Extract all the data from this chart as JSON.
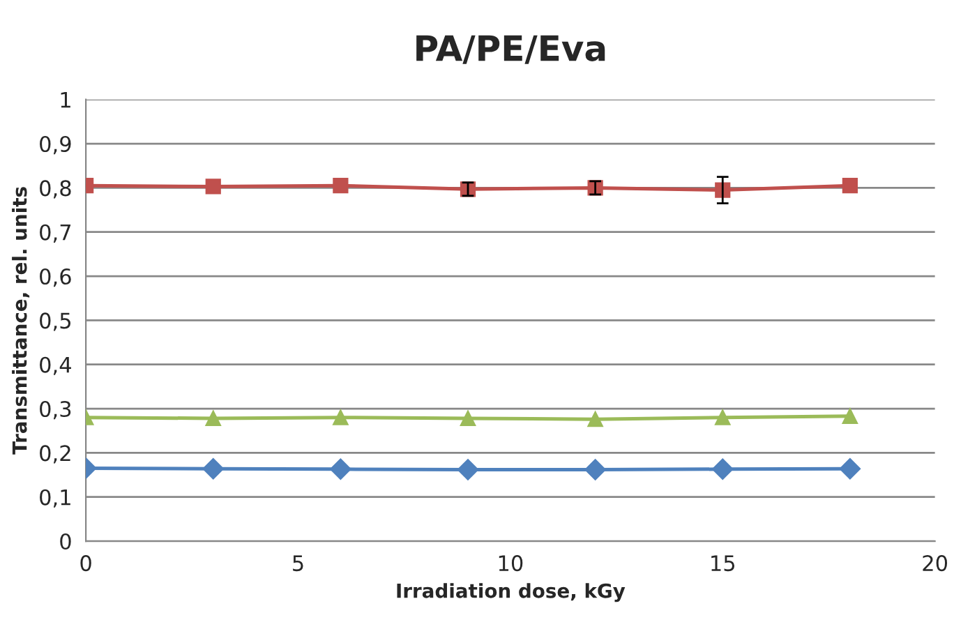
{
  "chart_data": {
    "type": "line",
    "title": "PA/PE/Eva",
    "xlabel": "Irradiation dose, kGy",
    "ylabel": "Transmittance, rel. units",
    "x": [
      0,
      3,
      6,
      9,
      12,
      15,
      18
    ],
    "series": [
      {
        "color": "#c0504d",
        "marker": "square",
        "values": [
          0.805,
          0.803,
          0.805,
          0.797,
          0.8,
          0.795,
          0.805
        ],
        "errors": [
          null,
          null,
          null,
          0.015,
          0.015,
          0.03,
          null
        ]
      },
      {
        "color": "#9bbb59",
        "marker": "triangle",
        "values": [
          0.28,
          0.278,
          0.28,
          0.278,
          0.276,
          0.28,
          0.283
        ]
      },
      {
        "color": "#4f81bd",
        "marker": "diamond",
        "values": [
          0.165,
          0.164,
          0.163,
          0.162,
          0.162,
          0.163,
          0.164
        ]
      }
    ],
    "xlim": [
      0,
      20
    ],
    "xticks": [
      0,
      5,
      10,
      15,
      20
    ],
    "ylim": [
      0,
      1
    ],
    "yticks": [
      0,
      {
        "value": 0.1,
        "label": "0,1"
      },
      {
        "value": 0.2,
        "label": "0,2"
      },
      {
        "value": 0.3,
        "label": "0,3"
      },
      {
        "value": 0.4,
        "label": "0,4"
      },
      {
        "value": 0.5,
        "label": "0,5"
      },
      {
        "value": 0.6,
        "label": "0,6"
      },
      {
        "value": 0.7,
        "label": "0,7"
      },
      {
        "value": 0.8,
        "label": "0,8"
      },
      {
        "value": 0.9,
        "label": "0,9"
      },
      1
    ],
    "grid": "y",
    "legend": false
  }
}
